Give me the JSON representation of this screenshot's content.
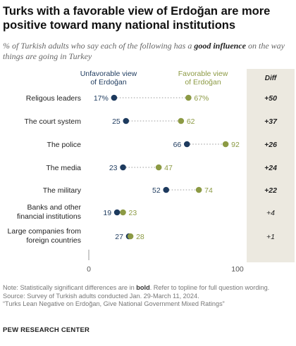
{
  "title": "Turks with a favorable view of Erdoğan are more positive toward many national institutions",
  "subtitle_pre": "% of Turkish adults who say each of the following has a ",
  "subtitle_bold": "good influence",
  "subtitle_post": " on the way things are going in Turkey",
  "colors": {
    "unfavorable": "#1d3a5e",
    "favorable": "#8c9a44",
    "diff_panel": "#ece9e0",
    "connector": "#bbbbbb"
  },
  "legend": {
    "unfavorable": [
      "Unfavorable view",
      "of Erdoğan"
    ],
    "favorable": [
      "Favorable view",
      "of Erdoğan"
    ],
    "diff_header": "Diff"
  },
  "chart_data": {
    "type": "dot",
    "xlim": [
      0,
      100
    ],
    "x_ticks": [
      0,
      100
    ],
    "categories": [
      [
        "Religous leaders"
      ],
      [
        "The court system"
      ],
      [
        "The police"
      ],
      [
        "The media"
      ],
      [
        "The military"
      ],
      [
        "Banks and other",
        "financial institutions"
      ],
      [
        "Large companies from",
        "foreign countries"
      ]
    ],
    "series": [
      {
        "name": "Unfavorable view of Erdoğan",
        "values": [
          17,
          25,
          66,
          23,
          52,
          19,
          27
        ]
      },
      {
        "name": "Favorable view of Erdoğan",
        "values": [
          67,
          62,
          92,
          47,
          74,
          23,
          28
        ]
      }
    ],
    "value_labels": {
      "unfavorable": [
        "17%",
        "25",
        "66",
        "23",
        "52",
        "19",
        "27"
      ],
      "favorable": [
        "67%",
        "62",
        "92",
        "47",
        "74",
        "23",
        "28"
      ]
    },
    "diff": [
      "+50",
      "+37",
      "+26",
      "+24",
      "+22",
      "+4",
      "+1"
    ],
    "diff_significant": [
      true,
      true,
      true,
      true,
      true,
      false,
      false
    ]
  },
  "notes": {
    "note_pre": "Note: Statistically significant differences are in ",
    "note_bold": "bold",
    "note_post": ". Refer to topline for full question wording.",
    "source": "Source: Survey of Turkish adults conducted Jan. 29-March 11, 2024.",
    "report": "“Turks Lean Negative on Erdoğan, Give National Government Mixed Ratings”"
  },
  "org": "PEW RESEARCH CENTER"
}
